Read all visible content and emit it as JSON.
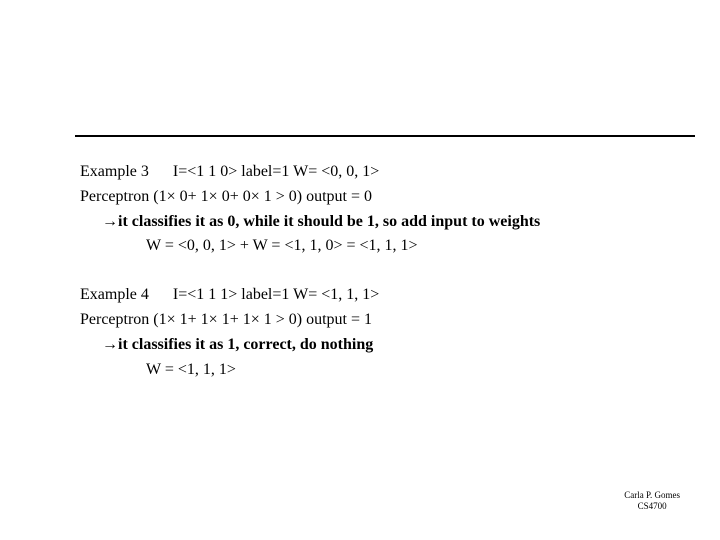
{
  "hr_color": "#000000",
  "text_color": "#000000",
  "background_color": "#ffffff",
  "font_family": "Times New Roman",
  "font_size_body": 16,
  "font_size_footer": 9,
  "example3": {
    "line1_a": "Example 3",
    "line1_b": "I=<1 1 0>   label=1 W=  <0, 0, 1>",
    "line2": "Perceptron (1× 0+ 1× 0+ 0× 1 > 0)  output = 0",
    "line3_arrow": "→",
    "line3_text": "it classifies it as 0, while it should be 1, so add input to weights",
    "line4": "W = <0, 0, 1>  + W = <1, 1, 0>  = <1, 1, 1>"
  },
  "example4": {
    "line1_a": "Example 4",
    "line1_b": "I=<1 1 1>   label=1 W=  <1, 1, 1>",
    "line2": "Perceptron (1× 1+ 1× 1+ 1× 1 > 0)  output = 1",
    "line3_arrow": "→",
    "line3_text": "it classifies it as 1, correct, do nothing",
    "line4": "W = <1, 1, 1>"
  },
  "footer": {
    "line1": "Carla P. Gomes",
    "line2": "CS4700"
  }
}
